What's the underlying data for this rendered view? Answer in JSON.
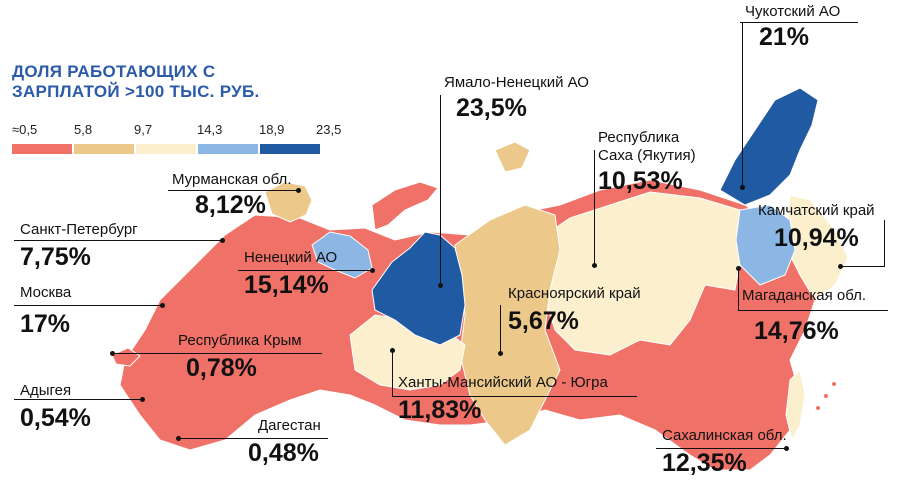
{
  "title": {
    "line1": "ДОЛЯ РАБОТАЮЩИХ С",
    "line2": "ЗАРПЛАТОЙ >100 ТЫС. РУБ."
  },
  "legend": {
    "ticks": [
      "≈0,5",
      "5,8",
      "9,7",
      "14,3",
      "18,9",
      "23,5"
    ],
    "colors": [
      "#f07167",
      "#ecc98b",
      "#fbefcd",
      "#8cb6e4",
      "#1f5aa3"
    ]
  },
  "regions": [
    {
      "key": "chukotka",
      "name": "Чукотский АО",
      "value": "21%"
    },
    {
      "key": "yamal",
      "name": "Ямало-Ненецкий АО",
      "value": "23,5%"
    },
    {
      "key": "yakutia",
      "name1": "Республика",
      "name2": "Саха (Якутия)",
      "value": "10,53%"
    },
    {
      "key": "murmansk",
      "name": "Мурманская обл.",
      "value": "8,12%"
    },
    {
      "key": "spb",
      "name": "Санкт-Петербург",
      "value": "7,75%"
    },
    {
      "key": "kamchatka",
      "name": "Камчатский край",
      "value": "10,94%"
    },
    {
      "key": "nenets",
      "name": "Ненецкий АО",
      "value": "15,14%"
    },
    {
      "key": "moscow",
      "name": "Москва",
      "value": "17%"
    },
    {
      "key": "krasnoyarsk",
      "name": "Красноярский край",
      "value": "5,67%"
    },
    {
      "key": "magadan",
      "name": "Магаданская обл.",
      "value": "14,76%"
    },
    {
      "key": "crimea",
      "name": "Республика Крым",
      "value": "0,78%"
    },
    {
      "key": "adygea",
      "name": "Адыгея",
      "value": "0,54%"
    },
    {
      "key": "khmao",
      "name": "Ханты-Мансийский АО - Югра",
      "value": "11,83%"
    },
    {
      "key": "dagestan",
      "name": "Дагестан",
      "value": "0,48%"
    },
    {
      "key": "sakhalin",
      "name": "Сахалинская обл.",
      "value": "12,35%"
    }
  ]
}
